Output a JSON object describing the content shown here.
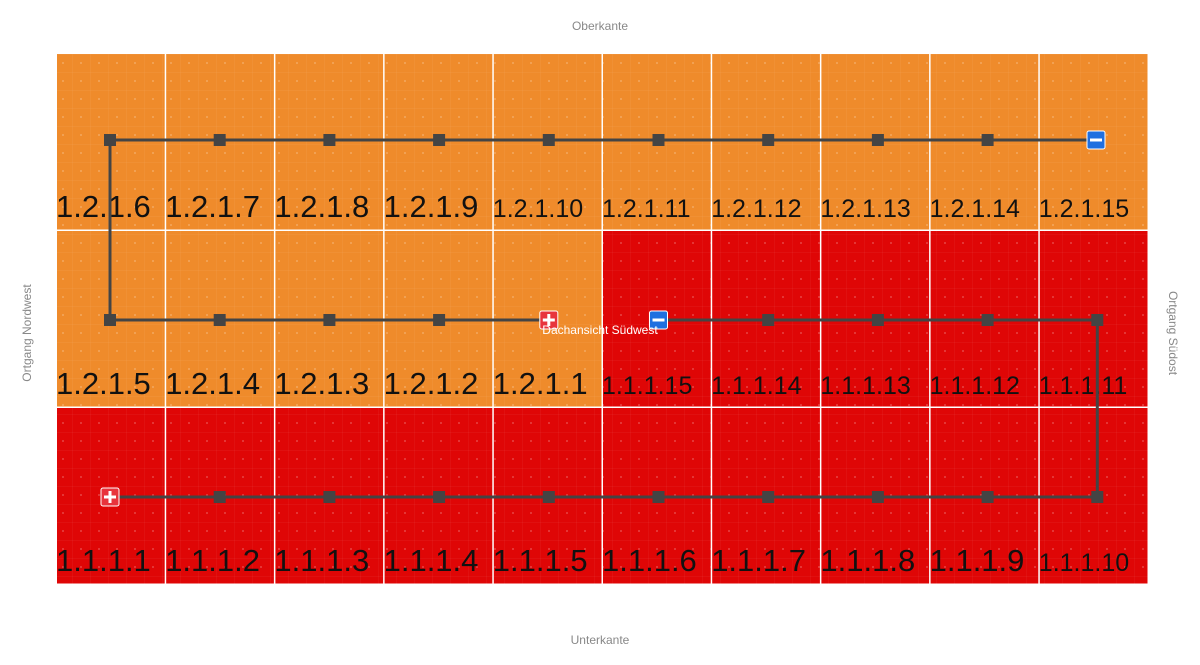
{
  "edges": {
    "top": "Oberkante",
    "bottom": "Unterkante",
    "left": "Ortgang Nordwest",
    "right": "Ortgang Südost"
  },
  "view_label": "Dachansicht Südwest",
  "panels": [
    [
      {
        "label": "1.2.1.6",
        "color": "#ef8b2b"
      },
      {
        "label": "1.2.1.7",
        "color": "#ef8b2b"
      },
      {
        "label": "1.2.1.8",
        "color": "#ef8b2b"
      },
      {
        "label": "1.2.1.9",
        "color": "#ef8b2b"
      },
      {
        "label": "1.2.1.10",
        "color": "#ef8b2b"
      },
      {
        "label": "1.2.1.11",
        "color": "#ef8b2b"
      },
      {
        "label": "1.2.1.12",
        "color": "#ef8b2b"
      },
      {
        "label": "1.2.1.13",
        "color": "#ef8b2b"
      },
      {
        "label": "1.2.1.14",
        "color": "#ef8b2b"
      },
      {
        "label": "1.2.1.15",
        "color": "#ef8b2b"
      }
    ],
    [
      {
        "label": "1.2.1.5",
        "color": "#ef8b2b"
      },
      {
        "label": "1.2.1.4",
        "color": "#ef8b2b"
      },
      {
        "label": "1.2.1.3",
        "color": "#ef8b2b"
      },
      {
        "label": "1.2.1.2",
        "color": "#ef8b2b"
      },
      {
        "label": "1.2.1.1",
        "color": "#ef8b2b"
      },
      {
        "label": "1.1.1.15",
        "color": "#df0606"
      },
      {
        "label": "1.1.1.14",
        "color": "#df0606"
      },
      {
        "label": "1.1.1.13",
        "color": "#df0606"
      },
      {
        "label": "1.1.1.12",
        "color": "#df0606"
      },
      {
        "label": "1.1.1.11",
        "color": "#df0606"
      }
    ],
    [
      {
        "label": "1.1.1.1",
        "color": "#df0606"
      },
      {
        "label": "1.1.1.2",
        "color": "#df0606"
      },
      {
        "label": "1.1.1.3",
        "color": "#df0606"
      },
      {
        "label": "1.1.1.4",
        "color": "#df0606"
      },
      {
        "label": "1.1.1.5",
        "color": "#df0606"
      },
      {
        "label": "1.1.1.6",
        "color": "#df0606"
      },
      {
        "label": "1.1.1.7",
        "color": "#df0606"
      },
      {
        "label": "1.1.1.8",
        "color": "#df0606"
      },
      {
        "label": "1.1.1.9",
        "color": "#df0606"
      },
      {
        "label": "1.1.1.10",
        "color": "#df0606"
      }
    ]
  ]
}
